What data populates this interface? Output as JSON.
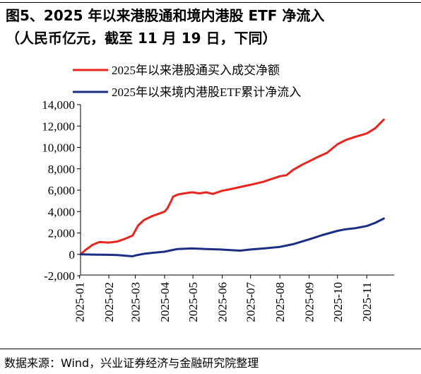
{
  "header": {
    "title_line1": "图5、2025 年以来港股通和境内港股 ETF 净流入",
    "title_line2": "（人民币亿元，截至 11 月 19 日，下同）"
  },
  "footer": {
    "source": "数据来源：Wind，兴业证券经济与金融研究院整理"
  },
  "chart_data": {
    "type": "line",
    "ylim": [
      -2000,
      14000
    ],
    "yticks": [
      -2000,
      0,
      2000,
      4000,
      6000,
      8000,
      10000,
      12000,
      14000
    ],
    "ytick_labels": [
      "-2,000",
      "0",
      "2,000",
      "4,000",
      "6,000",
      "8,000",
      "10,000",
      "12,000",
      "14,000"
    ],
    "x_start": "2025-01-02",
    "x_end": "2025-11-30",
    "xticks": [
      "2025-01",
      "2025-02",
      "2025-03",
      "2025-04",
      "2025-05",
      "2025-06",
      "2025-07",
      "2025-08",
      "2025-09",
      "2025-10",
      "2025-11"
    ],
    "legend_position": "top",
    "series": [
      {
        "name": "2025年以来港股通买入成交净额",
        "color": "#e8251f",
        "x": [
          "2025-01-02",
          "2025-01-08",
          "2025-01-15",
          "2025-01-22",
          "2025-02-01",
          "2025-02-10",
          "2025-02-18",
          "2025-02-26",
          "2025-03-04",
          "2025-03-10",
          "2025-03-18",
          "2025-03-26",
          "2025-04-01",
          "2025-04-04",
          "2025-04-08",
          "2025-04-10",
          "2025-04-15",
          "2025-04-22",
          "2025-04-30",
          "2025-05-08",
          "2025-05-15",
          "2025-05-22",
          "2025-06-01",
          "2025-06-10",
          "2025-06-20",
          "2025-07-01",
          "2025-07-15",
          "2025-07-25",
          "2025-08-01",
          "2025-08-08",
          "2025-08-15",
          "2025-08-25",
          "2025-09-01",
          "2025-09-10",
          "2025-09-20",
          "2025-10-01",
          "2025-10-10",
          "2025-10-20",
          "2025-11-01",
          "2025-11-10",
          "2025-11-19"
        ],
        "values": [
          0,
          450,
          900,
          1150,
          1100,
          1200,
          1450,
          1750,
          2700,
          3200,
          3550,
          3800,
          4000,
          4300,
          5000,
          5400,
          5600,
          5700,
          5800,
          5700,
          5800,
          5650,
          5950,
          6100,
          6300,
          6500,
          6800,
          7100,
          7300,
          7400,
          7900,
          8400,
          8700,
          9100,
          9500,
          10300,
          10700,
          11000,
          11300,
          11800,
          12600
        ]
      },
      {
        "name": "2025年以来境内港股ETF累计净流入",
        "color": "#1c2d84",
        "x": [
          "2025-01-02",
          "2025-01-15",
          "2025-02-01",
          "2025-02-10",
          "2025-02-18",
          "2025-02-26",
          "2025-03-01",
          "2025-03-10",
          "2025-03-20",
          "2025-04-01",
          "2025-04-08",
          "2025-04-15",
          "2025-04-30",
          "2025-05-15",
          "2025-05-30",
          "2025-06-10",
          "2025-06-20",
          "2025-07-01",
          "2025-07-15",
          "2025-08-01",
          "2025-08-15",
          "2025-09-01",
          "2025-09-15",
          "2025-10-01",
          "2025-10-10",
          "2025-10-20",
          "2025-11-01",
          "2025-11-10",
          "2025-11-19"
        ],
        "values": [
          0,
          -20,
          -40,
          -60,
          -120,
          -180,
          -100,
          50,
          150,
          250,
          380,
          500,
          550,
          500,
          450,
          400,
          350,
          450,
          550,
          700,
          950,
          1400,
          1800,
          2200,
          2350,
          2450,
          2650,
          2950,
          3350
        ]
      }
    ]
  }
}
